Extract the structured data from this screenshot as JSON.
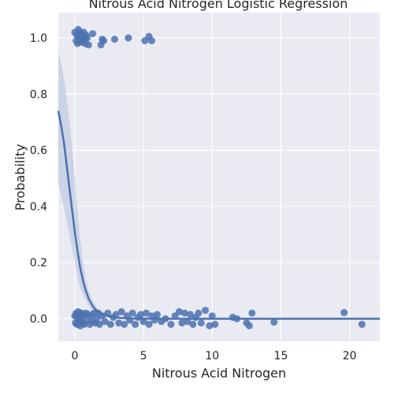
{
  "chart_data": {
    "type": "scatter",
    "title": "Nitrous Acid Nitrogen Logistic Regression",
    "xlabel": "Nitrous Acid Nitrogen",
    "ylabel": "Probability",
    "xlim": [
      -1.2,
      22.2
    ],
    "ylim": [
      -0.08,
      1.09
    ],
    "x_ticks": [
      0,
      5,
      10,
      15,
      20
    ],
    "y_ticks": [
      0.0,
      0.2,
      0.4,
      0.6,
      0.8,
      1.0
    ],
    "x_tick_labels": [
      "0",
      "5",
      "10",
      "15",
      "20"
    ],
    "y_tick_labels": [
      "0.0",
      "0.2",
      "0.4",
      "0.6",
      "0.8",
      "1.0"
    ],
    "grid": true,
    "colors": {
      "points": "#4c72b0",
      "line": "#4c72b0",
      "band": "#a9b8d8",
      "background": "#eaeaf2",
      "grid": "#ffffff"
    },
    "points_y1": [
      [
        0.0,
        1.02
      ],
      [
        0.1,
        0.99
      ],
      [
        0.15,
        1.01
      ],
      [
        0.2,
        0.98
      ],
      [
        0.25,
        1.03
      ],
      [
        0.3,
        1.0
      ],
      [
        0.35,
        0.99
      ],
      [
        0.4,
        1.02
      ],
      [
        0.45,
        0.985
      ],
      [
        0.5,
        1.01
      ],
      [
        0.55,
        1.0
      ],
      [
        0.6,
        0.99
      ],
      [
        0.65,
        1.02
      ],
      [
        0.7,
        1.0
      ],
      [
        0.75,
        0.98
      ],
      [
        0.8,
        1.01
      ],
      [
        0.9,
        1.0
      ],
      [
        1.0,
        0.975
      ],
      [
        1.3,
        1.015
      ],
      [
        1.9,
        0.975
      ],
      [
        2.0,
        0.995
      ],
      [
        2.1,
        0.99
      ],
      [
        2.9,
        0.995
      ],
      [
        3.9,
        1.0
      ],
      [
        5.1,
        0.99
      ],
      [
        5.4,
        1.005
      ],
      [
        5.6,
        0.99
      ]
    ],
    "points_y0": [
      [
        0.0,
        0.01
      ],
      [
        0.05,
        -0.015
      ],
      [
        0.1,
        0.02
      ],
      [
        0.15,
        -0.02
      ],
      [
        0.2,
        0.005
      ],
      [
        0.25,
        0.025
      ],
      [
        0.3,
        -0.01
      ],
      [
        0.35,
        0.015
      ],
      [
        0.4,
        -0.025
      ],
      [
        0.45,
        0.0
      ],
      [
        0.5,
        0.02
      ],
      [
        0.55,
        -0.015
      ],
      [
        0.6,
        0.01
      ],
      [
        0.7,
        -0.02
      ],
      [
        0.8,
        0.02
      ],
      [
        0.9,
        -0.005
      ],
      [
        1.0,
        0.015
      ],
      [
        1.1,
        -0.02
      ],
      [
        1.2,
        0.01
      ],
      [
        1.3,
        -0.01
      ],
      [
        1.4,
        0.02
      ],
      [
        1.5,
        -0.015
      ],
      [
        1.6,
        0.0
      ],
      [
        1.7,
        0.02
      ],
      [
        1.8,
        -0.02
      ],
      [
        2.0,
        0.01
      ],
      [
        2.2,
        -0.01
      ],
      [
        2.4,
        0.02
      ],
      [
        2.6,
        -0.02
      ],
      [
        2.8,
        0.005
      ],
      [
        3.0,
        0.015
      ],
      [
        3.2,
        -0.015
      ],
      [
        3.4,
        0.025
      ],
      [
        3.6,
        -0.02
      ],
      [
        3.8,
        0.01
      ],
      [
        4.0,
        -0.005
      ],
      [
        4.2,
        0.02
      ],
      [
        4.4,
        -0.02
      ],
      [
        4.6,
        0.005
      ],
      [
        4.8,
        0.015
      ],
      [
        5.0,
        -0.01
      ],
      [
        5.2,
        0.02
      ],
      [
        5.4,
        -0.02
      ],
      [
        5.6,
        0.01
      ],
      [
        5.8,
        -0.005
      ],
      [
        6.0,
        0.015
      ],
      [
        6.3,
        -0.01
      ],
      [
        6.6,
        0.0
      ],
      [
        7.0,
        -0.02
      ],
      [
        7.3,
        0.01
      ],
      [
        7.6,
        0.025
      ],
      [
        7.8,
        -0.015
      ],
      [
        8.0,
        0.02
      ],
      [
        8.2,
        -0.01
      ],
      [
        8.4,
        0.015
      ],
      [
        8.6,
        -0.02
      ],
      [
        8.8,
        0.005
      ],
      [
        9.0,
        0.02
      ],
      [
        9.2,
        -0.015
      ],
      [
        9.5,
        0.03
      ],
      [
        9.8,
        -0.025
      ],
      [
        10.0,
        0.01
      ],
      [
        10.2,
        -0.02
      ],
      [
        11.5,
        0.005
      ],
      [
        11.8,
        0.0
      ],
      [
        12.5,
        -0.015
      ],
      [
        12.7,
        -0.025
      ],
      [
        12.9,
        0.02
      ],
      [
        14.5,
        -0.012
      ],
      [
        19.6,
        0.022
      ],
      [
        20.9,
        -0.02
      ]
    ],
    "fit_curve": [
      [
        -1.2,
        0.74
      ],
      [
        -1.0,
        0.69
      ],
      [
        -0.8,
        0.63
      ],
      [
        -0.6,
        0.55
      ],
      [
        -0.4,
        0.47
      ],
      [
        -0.2,
        0.39
      ],
      [
        0.0,
        0.31
      ],
      [
        0.2,
        0.24
      ],
      [
        0.4,
        0.18
      ],
      [
        0.6,
        0.135
      ],
      [
        0.8,
        0.1
      ],
      [
        1.0,
        0.072
      ],
      [
        1.3,
        0.045
      ],
      [
        1.6,
        0.028
      ],
      [
        2.0,
        0.016
      ],
      [
        2.5,
        0.008
      ],
      [
        3.0,
        0.004
      ],
      [
        4.0,
        0.001
      ],
      [
        6.0,
        0.0
      ],
      [
        22.2,
        0.0
      ]
    ],
    "ci_upper": [
      [
        -1.2,
        0.95
      ],
      [
        -1.0,
        0.91
      ],
      [
        -0.8,
        0.86
      ],
      [
        -0.6,
        0.79
      ],
      [
        -0.4,
        0.71
      ],
      [
        -0.2,
        0.61
      ],
      [
        0.0,
        0.5
      ],
      [
        0.2,
        0.38
      ],
      [
        0.4,
        0.28
      ],
      [
        0.6,
        0.2
      ],
      [
        0.8,
        0.14
      ],
      [
        1.0,
        0.1
      ],
      [
        1.3,
        0.065
      ],
      [
        1.6,
        0.04
      ],
      [
        2.0,
        0.024
      ],
      [
        2.5,
        0.013
      ],
      [
        3.0,
        0.007
      ],
      [
        4.0,
        0.002
      ],
      [
        6.0,
        0.0
      ],
      [
        22.2,
        0.0
      ]
    ],
    "ci_lower": [
      [
        -1.2,
        0.48
      ],
      [
        -1.0,
        0.44
      ],
      [
        -0.8,
        0.4
      ],
      [
        -0.6,
        0.35
      ],
      [
        -0.4,
        0.3
      ],
      [
        -0.2,
        0.25
      ],
      [
        0.0,
        0.2
      ],
      [
        0.2,
        0.15
      ],
      [
        0.4,
        0.11
      ],
      [
        0.6,
        0.085
      ],
      [
        0.8,
        0.065
      ],
      [
        1.0,
        0.048
      ],
      [
        1.3,
        0.03
      ],
      [
        1.6,
        0.018
      ],
      [
        2.0,
        0.01
      ],
      [
        2.5,
        0.005
      ],
      [
        3.0,
        0.002
      ],
      [
        4.0,
        0.0
      ],
      [
        6.0,
        0.0
      ],
      [
        22.2,
        0.0
      ]
    ]
  }
}
